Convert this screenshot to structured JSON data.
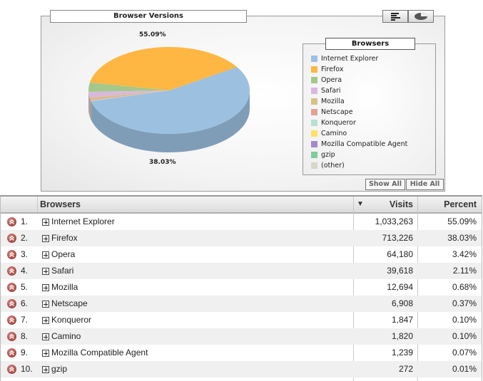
{
  "chart": {
    "title": "Browser Versions",
    "pie_label_top": "55.09%",
    "pie_label_bottom": "38.03%",
    "legend_title": "Browsers",
    "legend_items": [
      {
        "label": "Internet Explorer",
        "color": "#9cc0e0"
      },
      {
        "label": "Firefox",
        "color": "#ffb743"
      },
      {
        "label": "Opera",
        "color": "#a4c88a"
      },
      {
        "label": "Safari",
        "color": "#d9b8de"
      },
      {
        "label": "Mozilla",
        "color": "#d6c286"
      },
      {
        "label": "Netscape",
        "color": "#e3a196"
      },
      {
        "label": "Konqueror",
        "color": "#b6e0d2"
      },
      {
        "label": "Camino",
        "color": "#ffe066"
      },
      {
        "label": "Mozilla Compatible Agent",
        "color": "#a48ac6"
      },
      {
        "label": "gzip",
        "color": "#7fcc9e"
      },
      {
        "label": "(other)",
        "color": "#d9d5c8"
      }
    ],
    "show_all": "Show All",
    "hide_all": "Hide All"
  },
  "chart_data": {
    "type": "pie",
    "categories": [
      "Internet Explorer",
      "Firefox",
      "Opera",
      "Safari",
      "Mozilla",
      "Netscape",
      "Konqueror",
      "Camino",
      "Mozilla Compatible Agent",
      "gzip",
      "(other)"
    ],
    "values": [
      55.09,
      38.03,
      3.42,
      2.11,
      0.68,
      0.37,
      0.1,
      0.1,
      0.07,
      0.01,
      0.02
    ],
    "title": "Browser Versions",
    "legend_title": "Browsers",
    "legend_position": "right"
  },
  "table": {
    "headers": {
      "browsers": "Browsers",
      "visits": "Visits",
      "percent": "Percent"
    },
    "rows": [
      {
        "rank": "1.",
        "name": "Internet Explorer",
        "visits": "1,033,263",
        "percent": "55.09%"
      },
      {
        "rank": "2.",
        "name": "Firefox",
        "visits": "713,226",
        "percent": "38.03%"
      },
      {
        "rank": "3.",
        "name": "Opera",
        "visits": "64,180",
        "percent": "3.42%"
      },
      {
        "rank": "4.",
        "name": "Safari",
        "visits": "39,618",
        "percent": "2.11%"
      },
      {
        "rank": "5.",
        "name": "Mozilla",
        "visits": "12,694",
        "percent": "0.68%"
      },
      {
        "rank": "6.",
        "name": "Netscape",
        "visits": "6,908",
        "percent": "0.37%"
      },
      {
        "rank": "7.",
        "name": "Konqueror",
        "visits": "1,847",
        "percent": "0.10%"
      },
      {
        "rank": "8.",
        "name": "Camino",
        "visits": "1,820",
        "percent": "0.10%"
      },
      {
        "rank": "9.",
        "name": "Mozilla Compatible Agent",
        "visits": "1,239",
        "percent": "0.07%"
      },
      {
        "rank": "10.",
        "name": "gzip",
        "visits": "272",
        "percent": "0.01%"
      }
    ]
  }
}
